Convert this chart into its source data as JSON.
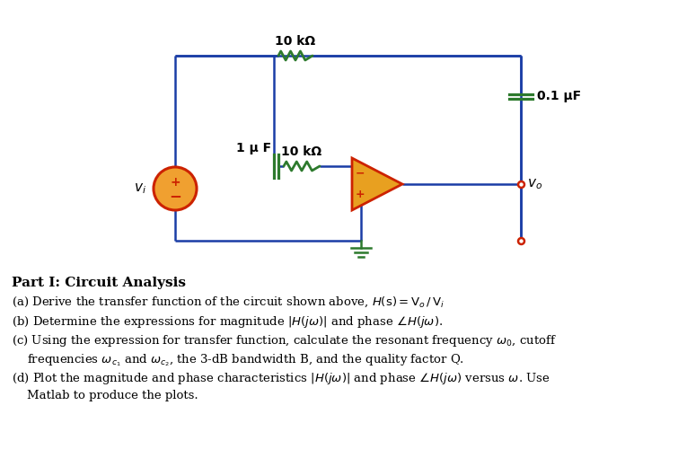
{
  "background_color": "#ffffff",
  "wire_color": "#1a3da6",
  "comp_color": "#2d7a2d",
  "opamp_fill": "#e8a020",
  "opamp_border": "#cc2200",
  "node_color": "#cc2200",
  "vs_fill": "#e85520",
  "vs_border": "#cc2200",
  "ground_color": "#2d7a2d",
  "text_color": "#000000",
  "label_10k_top": "10 kΩ",
  "label_01uF": "0.1 μF",
  "label_1uF": "1 μ F",
  "label_10k_mid": "10 kΩ",
  "label_vo": "v_o",
  "label_vi": "v_i"
}
